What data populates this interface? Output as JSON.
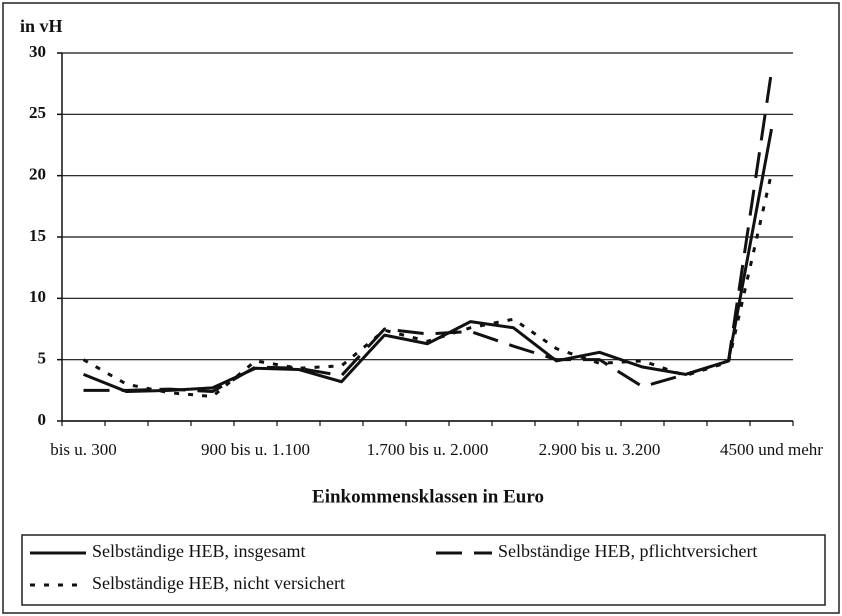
{
  "chart_data": {
    "type": "line",
    "y_label": "in vH",
    "x_label": "Einkommensklassen in Euro",
    "categories": [
      "bis u. 300",
      null,
      null,
      null,
      "900 bis u. 1.100",
      null,
      null,
      null,
      "1.700 bis u. 2.000",
      null,
      null,
      null,
      "2.900 bis u. 3.200",
      null,
      null,
      null,
      "4500 und mehr"
    ],
    "series": [
      {
        "name": "Selbständige HEB, insgesamt",
        "color": "#111111",
        "style": "solid",
        "values": [
          3.8,
          2.4,
          2.5,
          2.7,
          4.3,
          4.2,
          3.2,
          7.0,
          6.3,
          8.1,
          7.6,
          4.9,
          5.6,
          4.4,
          3.8,
          4.9,
          23.8
        ]
      },
      {
        "name": "Selbständige HEB, pflichtversichert",
        "color": "#111111",
        "style": "long-dash",
        "values": [
          2.5,
          2.5,
          2.6,
          2.4,
          4.4,
          4.3,
          3.7,
          7.5,
          7.1,
          7.3,
          6.1,
          5.0,
          5.0,
          2.8,
          3.8,
          4.9,
          28.5
        ]
      },
      {
        "name": "Selbständige HEB, nicht versichert",
        "color": "#111111",
        "style": "short-dash",
        "values": [
          5.0,
          3.0,
          2.3,
          2.0,
          4.9,
          4.3,
          4.5,
          7.4,
          6.5,
          7.6,
          8.3,
          5.9,
          4.7,
          4.9,
          3.7,
          4.8,
          20.2
        ]
      }
    ],
    "ylim": [
      0,
      30
    ],
    "yticks": [
      0,
      5,
      10,
      15,
      20,
      25,
      30
    ],
    "grid": true,
    "legend": "bottom"
  }
}
